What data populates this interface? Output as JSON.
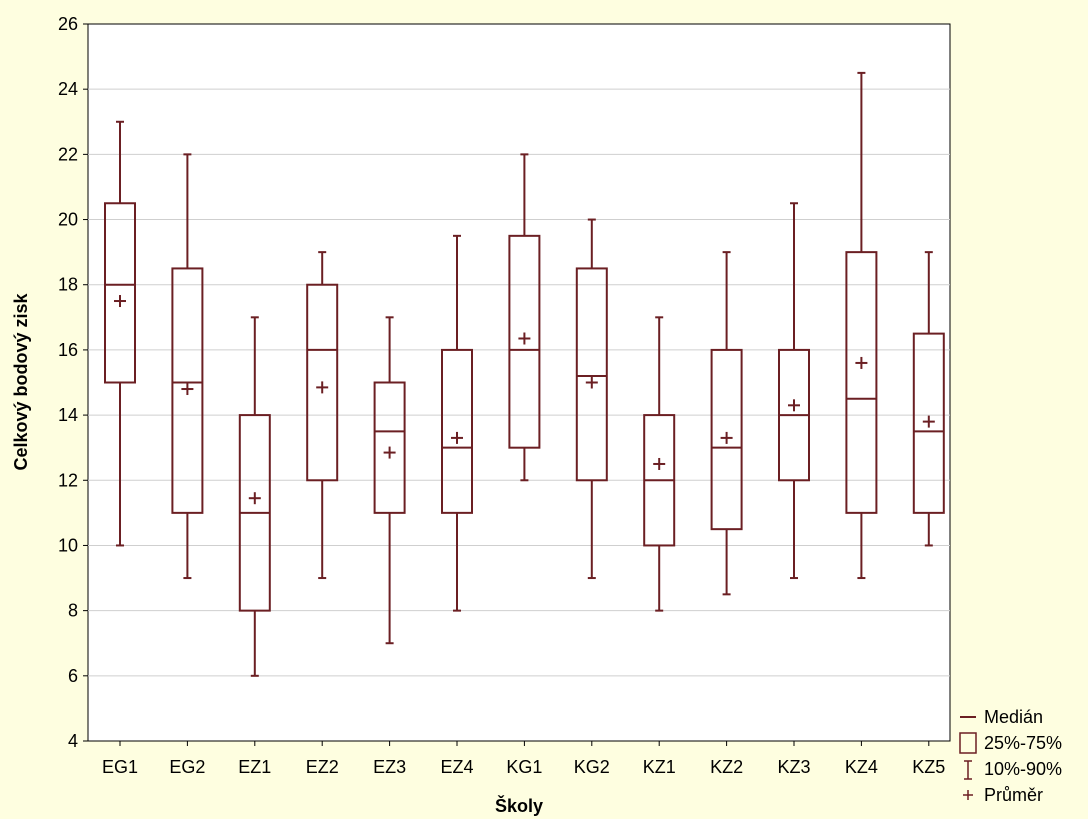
{
  "chart_data": {
    "type": "box",
    "xlabel": "Školy",
    "ylabel": "Celkový bodový zisk",
    "ylim": [
      4,
      26
    ],
    "yticks": [
      4,
      6,
      8,
      10,
      12,
      14,
      16,
      18,
      20,
      22,
      24,
      26
    ],
    "grid": true,
    "legend_position": "bottom-right",
    "colors": {
      "box": "#6b1f23",
      "background": "#fefee0",
      "plot_bg": "#ffffff",
      "grid": "#cfcfcf"
    },
    "legend": [
      {
        "symbol": "median-line",
        "label": "Medián"
      },
      {
        "symbol": "box",
        "label": "25%-75%"
      },
      {
        "symbol": "whisker",
        "label": "10%-90%"
      },
      {
        "symbol": "plus",
        "label": "Průměr"
      }
    ],
    "categories": [
      "EG1",
      "EG2",
      "EZ1",
      "EZ2",
      "EZ3",
      "EZ4",
      "KG1",
      "KG2",
      "KZ1",
      "KZ2",
      "KZ3",
      "KZ4",
      "KZ5"
    ],
    "boxes": [
      {
        "p10": 10,
        "q1": 15,
        "median": 18,
        "q3": 20.5,
        "p90": 23,
        "mean": 17.5
      },
      {
        "p10": 9,
        "q1": 11,
        "median": 15,
        "q3": 18.5,
        "p90": 22,
        "mean": 14.8
      },
      {
        "p10": 6,
        "q1": 8,
        "median": 11,
        "q3": 14,
        "p90": 17,
        "mean": 11.45
      },
      {
        "p10": 9,
        "q1": 12,
        "median": 16,
        "q3": 18,
        "p90": 19,
        "mean": 14.85
      },
      {
        "p10": 7,
        "q1": 11,
        "median": 13.5,
        "q3": 15,
        "p90": 17,
        "mean": 12.85
      },
      {
        "p10": 8,
        "q1": 11,
        "median": 13,
        "q3": 16,
        "p90": 19.5,
        "mean": 13.3
      },
      {
        "p10": 12,
        "q1": 13,
        "median": 16,
        "q3": 19.5,
        "p90": 22,
        "mean": 16.35
      },
      {
        "p10": 9,
        "q1": 12,
        "median": 15.2,
        "q3": 18.5,
        "p90": 20,
        "mean": 15
      },
      {
        "p10": 8,
        "q1": 10,
        "median": 12,
        "q3": 14,
        "p90": 17,
        "mean": 12.5
      },
      {
        "p10": 8.5,
        "q1": 10.5,
        "median": 13,
        "q3": 16,
        "p90": 19,
        "mean": 13.3
      },
      {
        "p10": 9,
        "q1": 12,
        "median": 14,
        "q3": 16,
        "p90": 20.5,
        "mean": 14.3
      },
      {
        "p10": 9,
        "q1": 11,
        "median": 14.5,
        "q3": 19,
        "p90": 24.5,
        "mean": 15.6
      },
      {
        "p10": 10,
        "q1": 11,
        "median": 13.5,
        "q3": 16.5,
        "p90": 19,
        "mean": 13.8
      }
    ]
  }
}
